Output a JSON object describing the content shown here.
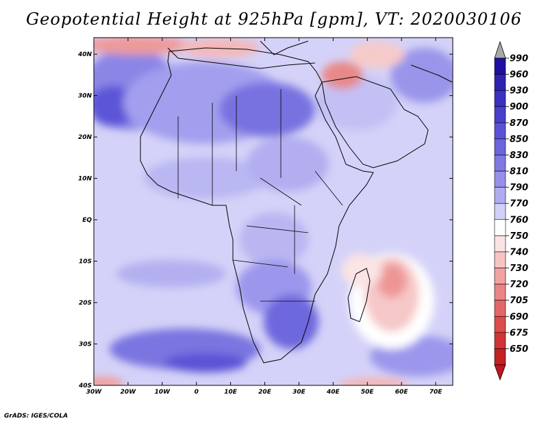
{
  "title": "Geopotential Height at 925hPa [gpm], VT: 2020030106",
  "credit": "GrADS: IGES/COLA",
  "map": {
    "lon_labels": [
      "30W",
      "20W",
      "10W",
      "0",
      "10E",
      "20E",
      "30E",
      "40E",
      "50E",
      "60E",
      "70E"
    ],
    "lat_labels": [
      "40N",
      "30N",
      "20N",
      "10N",
      "EQ",
      "10S",
      "20S",
      "30S",
      "40S"
    ],
    "lon_range": [
      -30,
      75
    ],
    "lat_range": [
      -40,
      44
    ]
  },
  "colorbar": {
    "labels": [
      "990",
      "960",
      "930",
      "900",
      "870",
      "850",
      "830",
      "810",
      "790",
      "770",
      "760",
      "750",
      "740",
      "730",
      "720",
      "705",
      "690",
      "675",
      "650"
    ],
    "colors": [
      "#1f0fa0",
      "#2f22b0",
      "#3b30c0",
      "#4a3fcc",
      "#5a52d6",
      "#6b64dc",
      "#8079e2",
      "#9690e8",
      "#b0acf0",
      "#d2d0f8",
      "#ffffff",
      "#fbe3e3",
      "#f7c4c4",
      "#f1a3a3",
      "#eb8585",
      "#e46767",
      "#dc4c4c",
      "#d03434",
      "#c22222"
    ],
    "top_arrow_color": "#a8a8a8",
    "bottom_arrow_color": "#c0151f"
  }
}
